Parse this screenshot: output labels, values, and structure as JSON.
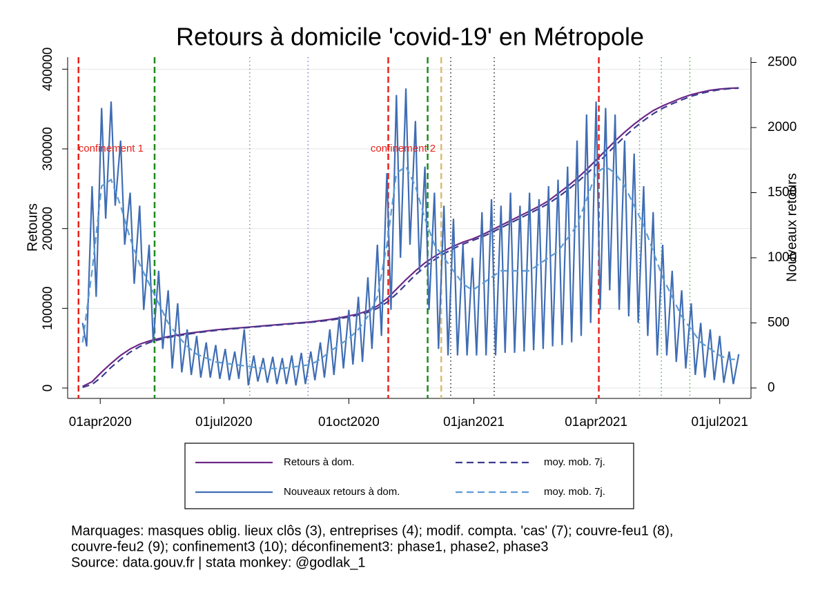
{
  "chart_data": {
    "type": "line",
    "title": "Retours à domicile 'covid-19' en Métropole",
    "ylabel": "Retours",
    "y2label": "Nouveaux retours",
    "xlim": [
      "2020-03-08",
      "2021-07-24"
    ],
    "xticks": [
      {
        "value": "2020-04-01",
        "label": "01apr2020"
      },
      {
        "value": "2020-07-01",
        "label": "01jul2020"
      },
      {
        "value": "2020-10-01",
        "label": "01oct2020"
      },
      {
        "value": "2021-01-01",
        "label": "01jan2021"
      },
      {
        "value": "2021-04-01",
        "label": "01apr2021"
      },
      {
        "value": "2021-07-01",
        "label": "01jul2021"
      }
    ],
    "ylim": [
      -13000,
      415000
    ],
    "yticks": [
      0,
      100000,
      200000,
      300000,
      400000
    ],
    "y2lim": [
      -80,
      2540
    ],
    "y2ticks": [
      0,
      500,
      1000,
      1500,
      2000,
      2500
    ],
    "grid": true,
    "x": [
      "2020-03-19",
      "2020-03-26",
      "2020-04-02",
      "2020-04-09",
      "2020-04-16",
      "2020-04-23",
      "2020-04-30",
      "2020-05-07",
      "2020-05-14",
      "2020-05-21",
      "2020-05-28",
      "2020-06-04",
      "2020-06-11",
      "2020-06-18",
      "2020-06-25",
      "2020-07-02",
      "2020-07-09",
      "2020-07-16",
      "2020-07-23",
      "2020-07-30",
      "2020-08-06",
      "2020-08-13",
      "2020-08-20",
      "2020-08-27",
      "2020-09-03",
      "2020-09-10",
      "2020-09-17",
      "2020-09-24",
      "2020-10-01",
      "2020-10-08",
      "2020-10-15",
      "2020-10-22",
      "2020-10-29",
      "2020-11-05",
      "2020-11-12",
      "2020-11-19",
      "2020-11-26",
      "2020-12-03",
      "2020-12-10",
      "2020-12-17",
      "2020-12-24",
      "2020-12-31",
      "2021-01-07",
      "2021-01-14",
      "2021-01-21",
      "2021-01-28",
      "2021-02-04",
      "2021-02-11",
      "2021-02-18",
      "2021-02-25",
      "2021-03-04",
      "2021-03-11",
      "2021-03-18",
      "2021-03-25",
      "2021-04-01",
      "2021-04-08",
      "2021-04-15",
      "2021-04-22",
      "2021-04-29",
      "2021-05-06",
      "2021-05-13",
      "2021-05-20",
      "2021-05-27",
      "2021-06-03",
      "2021-06-10",
      "2021-06-17",
      "2021-06-24",
      "2021-07-01",
      "2021-07-08",
      "2021-07-15"
    ],
    "series": [
      {
        "name": "Retours à dom.",
        "color": "#6e2787",
        "dash": false,
        "axis": "y",
        "values": [
          2000,
          8000,
          20000,
          31000,
          41000,
          49000,
          55000,
          59000,
          62000,
          64500,
          66500,
          68500,
          70000,
          71500,
          73000,
          74000,
          75000,
          76000,
          77000,
          78000,
          79000,
          80000,
          81000,
          82000,
          83000,
          84500,
          86000,
          88000,
          90500,
          93000,
          97000,
          103000,
          112000,
          124000,
          136000,
          147000,
          157000,
          165000,
          172000,
          178000,
          183000,
          187000,
          192000,
          198000,
          204000,
          210000,
          216000,
          222000,
          228000,
          235000,
          244000,
          253000,
          263000,
          274000,
          286000,
          298000,
          310000,
          321000,
          331000,
          340000,
          348000,
          354000,
          359000,
          364000,
          368000,
          371000,
          373500,
          375000,
          376000,
          376500
        ]
      },
      {
        "name": "moy. mob. 7j.",
        "color": "#3b3a8f",
        "dash": true,
        "axis": "y",
        "values": [
          1000,
          4500,
          14000,
          26000,
          36000,
          45000,
          52000,
          57000,
          60500,
          63500,
          65500,
          67500,
          69300,
          70800,
          72300,
          73500,
          74500,
          75500,
          76500,
          77500,
          78500,
          79500,
          80500,
          81500,
          82500,
          83700,
          85200,
          87000,
          89200,
          91700,
          95000,
          100000,
          107500,
          118000,
          130000,
          142000,
          152000,
          161000,
          168500,
          175000,
          180500,
          185000,
          189500,
          195000,
          201000,
          207000,
          213000,
          219000,
          225000,
          231500,
          239500,
          248500,
          258000,
          268500,
          280000,
          292000,
          304000,
          315500,
          326000,
          335500,
          344000,
          351000,
          356500,
          361500,
          366000,
          369500,
          372300,
          374300,
          375500,
          376200
        ]
      },
      {
        "name": "Nouveaux retours à dom.",
        "color": "#3f6db3",
        "dash": false,
        "axis": "y2",
        "x": [
          "2020-03-19",
          "2020-03-22",
          "2020-03-26",
          "2020-03-29",
          "2020-04-02",
          "2020-04-05",
          "2020-04-09",
          "2020-04-12",
          "2020-04-16",
          "2020-04-19",
          "2020-04-23",
          "2020-04-26",
          "2020-04-30",
          "2020-05-03",
          "2020-05-07",
          "2020-05-10",
          "2020-05-14",
          "2020-05-17",
          "2020-05-21",
          "2020-05-24",
          "2020-05-28",
          "2020-05-31",
          "2020-06-04",
          "2020-06-07",
          "2020-06-11",
          "2020-06-14",
          "2020-06-18",
          "2020-06-21",
          "2020-06-25",
          "2020-06-28",
          "2020-07-02",
          "2020-07-05",
          "2020-07-09",
          "2020-07-12",
          "2020-07-16",
          "2020-07-19",
          "2020-07-23",
          "2020-07-26",
          "2020-07-30",
          "2020-08-02",
          "2020-08-06",
          "2020-08-09",
          "2020-08-13",
          "2020-08-16",
          "2020-08-20",
          "2020-08-23",
          "2020-08-27",
          "2020-08-30",
          "2020-09-03",
          "2020-09-06",
          "2020-09-10",
          "2020-09-13",
          "2020-09-17",
          "2020-09-20",
          "2020-09-24",
          "2020-09-27",
          "2020-10-01",
          "2020-10-04",
          "2020-10-08",
          "2020-10-11",
          "2020-10-15",
          "2020-10-18",
          "2020-10-22",
          "2020-10-25",
          "2020-10-29",
          "2020-11-01",
          "2020-11-05",
          "2020-11-08",
          "2020-11-12",
          "2020-11-15",
          "2020-11-19",
          "2020-11-22",
          "2020-11-26",
          "2020-11-29",
          "2020-12-03",
          "2020-12-06",
          "2020-12-10",
          "2020-12-13",
          "2020-12-17",
          "2020-12-20",
          "2020-12-24",
          "2020-12-27",
          "2020-12-31",
          "2021-01-03",
          "2021-01-07",
          "2021-01-10",
          "2021-01-14",
          "2021-01-17",
          "2021-01-21",
          "2021-01-24",
          "2021-01-28",
          "2021-01-31",
          "2021-02-04",
          "2021-02-07",
          "2021-02-11",
          "2021-02-14",
          "2021-02-18",
          "2021-02-21",
          "2021-02-25",
          "2021-02-28",
          "2021-03-04",
          "2021-03-07",
          "2021-03-11",
          "2021-03-14",
          "2021-03-18",
          "2021-03-21",
          "2021-03-25",
          "2021-03-28",
          "2021-04-01",
          "2021-04-04",
          "2021-04-08",
          "2021-04-11",
          "2021-04-15",
          "2021-04-18",
          "2021-04-22",
          "2021-04-25",
          "2021-04-29",
          "2021-05-02",
          "2021-05-06",
          "2021-05-09",
          "2021-05-13",
          "2021-05-16",
          "2021-05-20",
          "2021-05-23",
          "2021-05-27",
          "2021-05-30",
          "2021-06-03",
          "2021-06-06",
          "2021-06-10",
          "2021-06-13",
          "2021-06-17",
          "2021-06-20",
          "2021-06-24",
          "2021-06-27",
          "2021-07-01",
          "2021-07-04",
          "2021-07-08",
          "2021-07-11",
          "2021-07-15"
        ],
        "values": [
          500,
          320,
          1550,
          700,
          2150,
          1300,
          2200,
          1400,
          1900,
          1100,
          1500,
          800,
          1400,
          600,
          1100,
          350,
          900,
          300,
          750,
          150,
          650,
          120,
          450,
          100,
          400,
          80,
          350,
          80,
          330,
          70,
          300,
          60,
          280,
          70,
          450,
          20,
          250,
          50,
          230,
          40,
          240,
          30,
          230,
          30,
          250,
          20,
          270,
          30,
          280,
          60,
          350,
          80,
          450,
          100,
          550,
          150,
          600,
          180,
          700,
          200,
          850,
          300,
          1100,
          400,
          1650,
          600,
          2250,
          1000,
          2300,
          1100,
          2050,
          900,
          1700,
          600,
          1500,
          300,
          1400,
          250,
          1300,
          250,
          1100,
          250,
          1000,
          250,
          1350,
          250,
          1450,
          250,
          1400,
          270,
          1500,
          270,
          1400,
          280,
          1500,
          290,
          1450,
          300,
          1550,
          320,
          1600,
          330,
          1700,
          350,
          1900,
          400,
          2100,
          500,
          2200,
          600,
          2150,
          750,
          2100,
          600,
          1900,
          550,
          1800,
          500,
          1550,
          400,
          1350,
          250,
          1100,
          250,
          900,
          200,
          750,
          150,
          650,
          100,
          500,
          80,
          450,
          60,
          400,
          40,
          280,
          30,
          260
        ]
      },
      {
        "name": "moy. mob. 7j.",
        "color": "#5b9bd5",
        "dash": true,
        "axis": "y2",
        "values": [
          350,
          900,
          1550,
          1600,
          1400,
          1150,
          950,
          800,
          650,
          500,
          400,
          320,
          260,
          230,
          200,
          190,
          180,
          170,
          160,
          150,
          150,
          150,
          160,
          170,
          180,
          220,
          280,
          330,
          380,
          450,
          550,
          700,
          1100,
          1650,
          1700,
          1550,
          1300,
          1100,
          1000,
          900,
          800,
          750,
          800,
          850,
          900,
          900,
          900,
          900,
          950,
          1000,
          1050,
          1150,
          1250,
          1450,
          1650,
          1700,
          1650,
          1550,
          1400,
          1250,
          1050,
          850,
          700,
          550,
          450,
          350,
          300,
          250,
          220,
          220
        ]
      }
    ],
    "events": [
      {
        "x": "2020-03-16",
        "color": "#e8221b",
        "style": "dash"
      },
      {
        "x": "2020-05-11",
        "color": "#1a8a1a",
        "style": "dash"
      },
      {
        "x": "2020-07-20",
        "color": "#8a8a8a",
        "style": "dot"
      },
      {
        "x": "2020-09-01",
        "color": "#7878c8",
        "style": "dot"
      },
      {
        "x": "2020-10-30",
        "color": "#e8221b",
        "style": "dash"
      },
      {
        "x": "2020-11-28",
        "color": "#1a8a1a",
        "style": "dash"
      },
      {
        "x": "2020-12-08",
        "color": "#d9bd72",
        "style": "dash"
      },
      {
        "x": "2020-12-15",
        "color": "#222222",
        "style": "dot"
      },
      {
        "x": "2021-01-16",
        "color": "#222222",
        "style": "dot"
      },
      {
        "x": "2021-04-03",
        "color": "#e8221b",
        "style": "dash"
      },
      {
        "x": "2021-05-03",
        "color": "#4caf50",
        "style": "dot"
      },
      {
        "x": "2021-05-19",
        "color": "#4caf50",
        "style": "dot"
      },
      {
        "x": "2021-06-09",
        "color": "#4caf50",
        "style": "dot"
      }
    ],
    "annotations": [
      {
        "text": "confinement 1",
        "x": "2020-03-16",
        "y": 300000,
        "color": "#e8221b"
      },
      {
        "text": "confinement 2",
        "x": "2020-10-17",
        "y": 300000,
        "color": "#e8221b"
      }
    ],
    "legend": {
      "position": "bottom",
      "columns": 2
    },
    "notes": [
      "Marquages: masques oblig. lieux clôs (3), entreprises (4); modif. compta. 'cas' (7); couvre-feu1 (8),",
      "couvre-feu2 (9); confinement3 (10); déconfinement3: phase1, phase2, phase3",
      "Source: data.gouv.fr | stata monkey: @godlak_1"
    ]
  }
}
